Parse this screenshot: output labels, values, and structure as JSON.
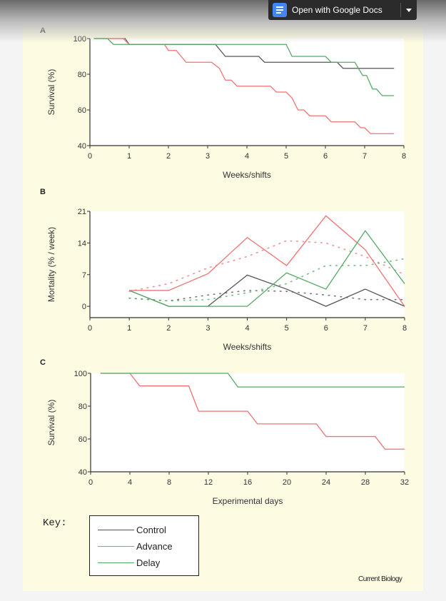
{
  "toolbar": {
    "open_with_label": "Open with Google Docs",
    "icon": "google-docs-icon",
    "dropdown_icon": "caret-down-icon"
  },
  "colors": {
    "control": "#555555",
    "advance": "#f07272",
    "delay": "#55aa66",
    "paper": "#fdfbe2"
  },
  "key": {
    "label": "Key:",
    "entries": [
      {
        "name": "Control",
        "color": "#555555"
      },
      {
        "name": "Advance",
        "color": "#f07272"
      },
      {
        "name": "Delay",
        "color": "#55aa66"
      }
    ]
  },
  "credit": "Current Biology",
  "chart_data": [
    {
      "panel": "A",
      "type": "line",
      "step": true,
      "xlabel": "Weeks/shifts",
      "ylabel": "Survival (%)",
      "xlim": [
        0,
        8
      ],
      "ylim": [
        40,
        100
      ],
      "xticks": [
        0,
        1,
        2,
        3,
        4,
        5,
        6,
        7,
        8
      ],
      "yticks": [
        40,
        60,
        80,
        100
      ],
      "series": [
        {
          "name": "Control",
          "points": [
            [
              0.1,
              100
            ],
            [
              0.9,
              100
            ],
            [
              1.0,
              96.7
            ],
            [
              3.2,
              96.7
            ],
            [
              3.45,
              90
            ],
            [
              4.3,
              90
            ],
            [
              4.45,
              86.7
            ],
            [
              6.3,
              86.7
            ],
            [
              6.45,
              83.3
            ],
            [
              7.75,
              83.3
            ]
          ]
        },
        {
          "name": "Advance",
          "points": [
            [
              0.1,
              100
            ],
            [
              0.85,
              100
            ],
            [
              1.0,
              96.7
            ],
            [
              1.9,
              96.7
            ],
            [
              2.0,
              93.3
            ],
            [
              2.2,
              93.3
            ],
            [
              2.45,
              86.7
            ],
            [
              3.1,
              86.7
            ],
            [
              3.3,
              83.3
            ],
            [
              3.45,
              76.7
            ],
            [
              3.6,
              76.7
            ],
            [
              3.75,
              73.3
            ],
            [
              4.6,
              73.3
            ],
            [
              4.75,
              70
            ],
            [
              5.0,
              70
            ],
            [
              5.15,
              66.7
            ],
            [
              5.3,
              60
            ],
            [
              5.45,
              60
            ],
            [
              5.6,
              56.7
            ],
            [
              6.0,
              56.7
            ],
            [
              6.15,
              53.3
            ],
            [
              6.75,
              53.3
            ],
            [
              6.9,
              50
            ],
            [
              7.0,
              50
            ],
            [
              7.15,
              46.7
            ],
            [
              7.75,
              46.7
            ]
          ]
        },
        {
          "name": "Delay",
          "points": [
            [
              0.1,
              100
            ],
            [
              0.45,
              100
            ],
            [
              0.6,
              96.7
            ],
            [
              5.0,
              96.7
            ],
            [
              5.15,
              90
            ],
            [
              6.0,
              90
            ],
            [
              6.15,
              86.7
            ],
            [
              6.75,
              86.7
            ],
            [
              6.95,
              79.3
            ],
            [
              7.05,
              79.3
            ],
            [
              7.2,
              71.7
            ],
            [
              7.3,
              71.7
            ],
            [
              7.45,
              68
            ],
            [
              7.75,
              68
            ]
          ]
        }
      ]
    },
    {
      "panel": "B",
      "type": "line",
      "xlabel": "Weeks/shifts",
      "ylabel": "Mortality (% / week)",
      "xlim": [
        0,
        8
      ],
      "ylim": [
        -2.5,
        21
      ],
      "xticks": [
        0,
        1,
        2,
        3,
        4,
        5,
        6,
        7,
        8
      ],
      "yticks": [
        0,
        7,
        14,
        21
      ],
      "series": [
        {
          "name": "Control",
          "x": [
            1,
            2,
            3,
            4,
            5,
            6,
            7,
            8
          ],
          "values": [
            3.5,
            0,
            0,
            6.9,
            3.8,
            0,
            3.8,
            0
          ]
        },
        {
          "name": "Advance",
          "x": [
            1,
            2,
            3,
            4,
            5,
            6,
            7,
            8
          ],
          "values": [
            3.5,
            3.5,
            7.2,
            15.2,
            9.0,
            20,
            12.5,
            0
          ]
        },
        {
          "name": "Delay",
          "x": [
            1,
            2,
            3,
            4,
            5,
            6,
            7,
            8
          ],
          "values": [
            3.5,
            0,
            0,
            0,
            7.4,
            3.8,
            16.7,
            5.0
          ]
        }
      ],
      "trend_series": [
        {
          "name": "Control",
          "x": [
            1,
            2,
            3,
            4,
            5,
            6,
            7,
            8
          ],
          "values": [
            1.8,
            1.2,
            2.5,
            3.5,
            3.3,
            2.5,
            1.5,
            1.5
          ]
        },
        {
          "name": "Advance",
          "x": [
            1,
            2,
            3,
            4,
            5,
            6,
            7,
            8
          ],
          "values": [
            3.3,
            5,
            8.5,
            11,
            14.5,
            14,
            11,
            7
          ]
        },
        {
          "name": "Delay",
          "x": [
            1,
            2,
            3,
            4,
            5,
            6,
            7,
            8
          ],
          "values": [
            1.8,
            1.2,
            1.5,
            3,
            5,
            9,
            9,
            10.5
          ]
        }
      ]
    },
    {
      "panel": "C",
      "type": "line",
      "step": true,
      "xlabel": "Experimental days",
      "ylabel": "Survival (%)",
      "xlim": [
        0,
        32
      ],
      "ylim": [
        40,
        100
      ],
      "xticks": [
        0,
        4,
        8,
        12,
        16,
        20,
        24,
        28,
        32
      ],
      "yticks": [
        40,
        60,
        80,
        100
      ],
      "series": [
        {
          "name": "Advance",
          "points": [
            [
              1,
              100
            ],
            [
              4,
              100
            ],
            [
              5,
              92.3
            ],
            [
              10,
              92.3
            ],
            [
              11,
              76.9
            ],
            [
              16,
              76.9
            ],
            [
              17,
              69.2
            ],
            [
              23,
              69.2
            ],
            [
              24,
              61.5
            ],
            [
              29,
              61.5
            ],
            [
              30,
              53.8
            ],
            [
              32,
              53.8
            ]
          ]
        },
        {
          "name": "Delay",
          "points": [
            [
              1,
              100
            ],
            [
              14,
              100
            ],
            [
              15,
              91.7
            ],
            [
              32,
              91.7
            ]
          ]
        }
      ]
    }
  ]
}
